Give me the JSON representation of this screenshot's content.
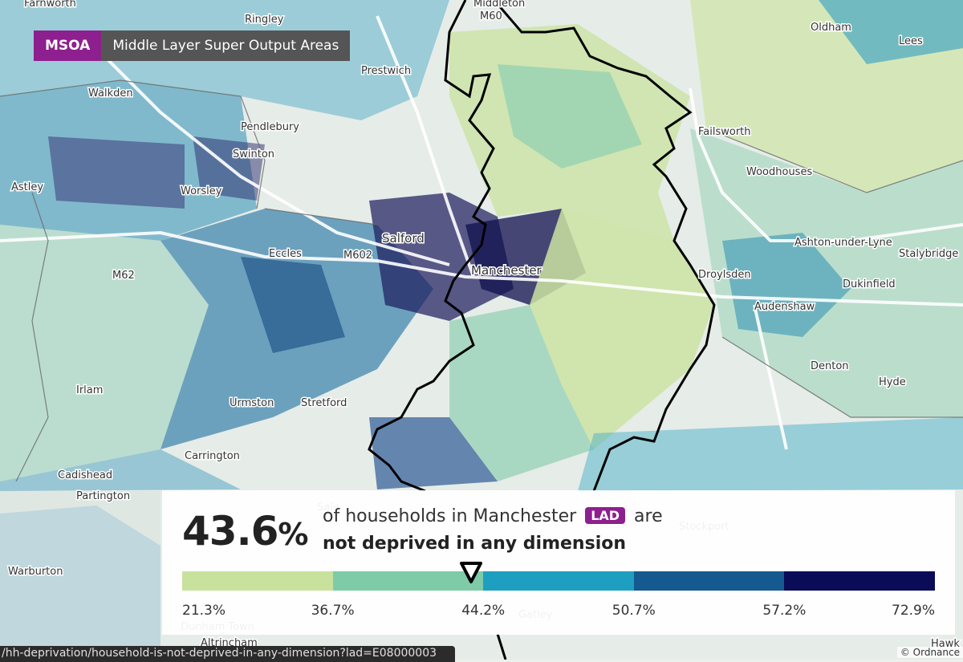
{
  "geography": {
    "code": "MSOA",
    "name": "Middle Layer Super Output Areas"
  },
  "summary": {
    "value": "43.6",
    "unit": "%",
    "line1_prefix": "of households in Manchester",
    "area_type": "LAD",
    "line1_suffix": "are",
    "line2": "not deprived in any dimension",
    "marker_value": 43.6
  },
  "legend": {
    "breaks": [
      "21.3%",
      "36.7%",
      "44.2%",
      "50.7%",
      "57.2%",
      "72.9%"
    ],
    "colors": [
      "#c8e29d",
      "#7ecba8",
      "#1f9fc0",
      "#155a8e",
      "#0b0c58"
    ]
  },
  "places": [
    "Farnworth",
    "Ringley",
    "Middleton",
    "Oldham",
    "Lees",
    "Prestwich",
    "Walkden",
    "Pendlebury",
    "Swinton",
    "Failsworth",
    "Woodhouses",
    "Astley",
    "Worsley",
    "Salford",
    "Eccles",
    "M602",
    "M62",
    "M60",
    "Manchester",
    "Ashton-under-Lyne",
    "Stalybridge",
    "Droylsden",
    "Dukinfield",
    "Audenshaw",
    "Irlam",
    "Urmston",
    "Stretford",
    "Denton",
    "Hyde",
    "Carrington",
    "Cadishead",
    "Partington",
    "Sale",
    "Warburton",
    "Stockport",
    "Gatley",
    "Altrincham",
    "Dunham Town",
    "Hawk Gr"
  ],
  "status_url": "/hh-deprivation/household-is-not-deprived-in-any-dimension?lad=E08000003",
  "attribution": "© Ordnance"
}
